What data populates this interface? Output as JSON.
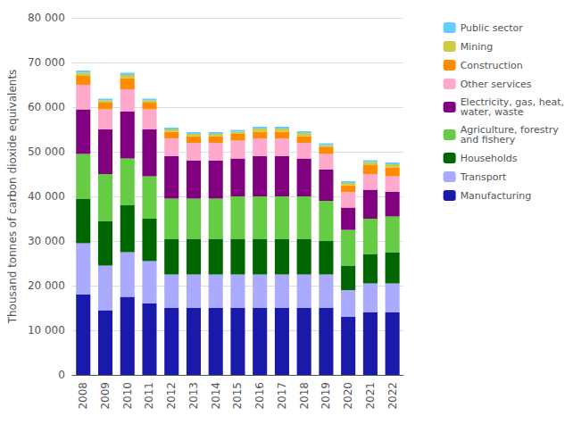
{
  "chart_data": {
    "type": "bar",
    "stacked": true,
    "ylabel": "Thousand tonnes of carbon dioxide equivalents",
    "categories": [
      "2008",
      "2009",
      "2010",
      "2011",
      "2012",
      "2013",
      "2014",
      "2015",
      "2016",
      "2017",
      "2018",
      "2019",
      "2020",
      "2021",
      "2022"
    ],
    "series": [
      {
        "name": "Manufacturing",
        "color": "#1a1aaa",
        "values": [
          18000,
          14500,
          17500,
          16000,
          15000,
          15000,
          15000,
          15000,
          15000,
          15000,
          15000,
          15000,
          13000,
          14000,
          14000
        ]
      },
      {
        "name": "Transport",
        "color": "#aaaaff",
        "values": [
          11500,
          10000,
          10000,
          9500,
          7500,
          7500,
          7500,
          7500,
          7500,
          7500,
          7500,
          7500,
          6000,
          6500,
          6500
        ]
      },
      {
        "name": "Households",
        "color": "#006600",
        "values": [
          10000,
          10000,
          10500,
          9500,
          8000,
          8000,
          8000,
          8000,
          8000,
          8000,
          8000,
          7500,
          5500,
          6500,
          7000
        ]
      },
      {
        "name": "Agriculture, forestry\nand fishery",
        "color": "#66cc44",
        "values": [
          10000,
          10500,
          10500,
          9500,
          9000,
          9000,
          9000,
          9500,
          9500,
          9500,
          9500,
          9000,
          8000,
          8000,
          8000
        ]
      },
      {
        "name": "Electricity, gas, heat,\nwater, waste",
        "color": "#800080",
        "values": [
          10000,
          10000,
          10500,
          10500,
          9500,
          8500,
          8500,
          8500,
          9000,
          9000,
          8500,
          7000,
          5000,
          6500,
          5500
        ]
      },
      {
        "name": "Other services",
        "color": "#ffaacc",
        "values": [
          5500,
          4500,
          5000,
          4500,
          4000,
          4000,
          4000,
          4000,
          4000,
          4000,
          3500,
          3500,
          3500,
          3500,
          3500
        ]
      },
      {
        "name": "Construction",
        "color": "#ff8c00",
        "values": [
          2000,
          1500,
          2500,
          1500,
          1500,
          1500,
          1500,
          1500,
          1500,
          1500,
          1500,
          1500,
          1500,
          2000,
          2000
        ]
      },
      {
        "name": "Mining",
        "color": "#cccc44",
        "values": [
          700,
          500,
          700,
          500,
          500,
          500,
          500,
          500,
          700,
          700,
          700,
          500,
          500,
          700,
          700
        ]
      },
      {
        "name": "Public sector",
        "color": "#66ccff",
        "values": [
          500,
          400,
          500,
          400,
          400,
          400,
          400,
          400,
          400,
          400,
          400,
          400,
          400,
          400,
          400
        ]
      }
    ],
    "ylim": [
      0,
      80000
    ],
    "yticks": [
      0,
      {
        "value": 10000,
        "label": "10 000"
      },
      {
        "value": 20000,
        "label": "20 000"
      },
      {
        "value": 30000,
        "label": "30 000"
      },
      {
        "value": 40000,
        "label": "40 000"
      },
      {
        "value": 50000,
        "label": "50 000"
      },
      {
        "value": 60000,
        "label": "60 000"
      },
      {
        "value": 70000,
        "label": "70 000"
      },
      {
        "value": 80000,
        "label": "80 000"
      }
    ],
    "grid": true,
    "legend": "right"
  }
}
